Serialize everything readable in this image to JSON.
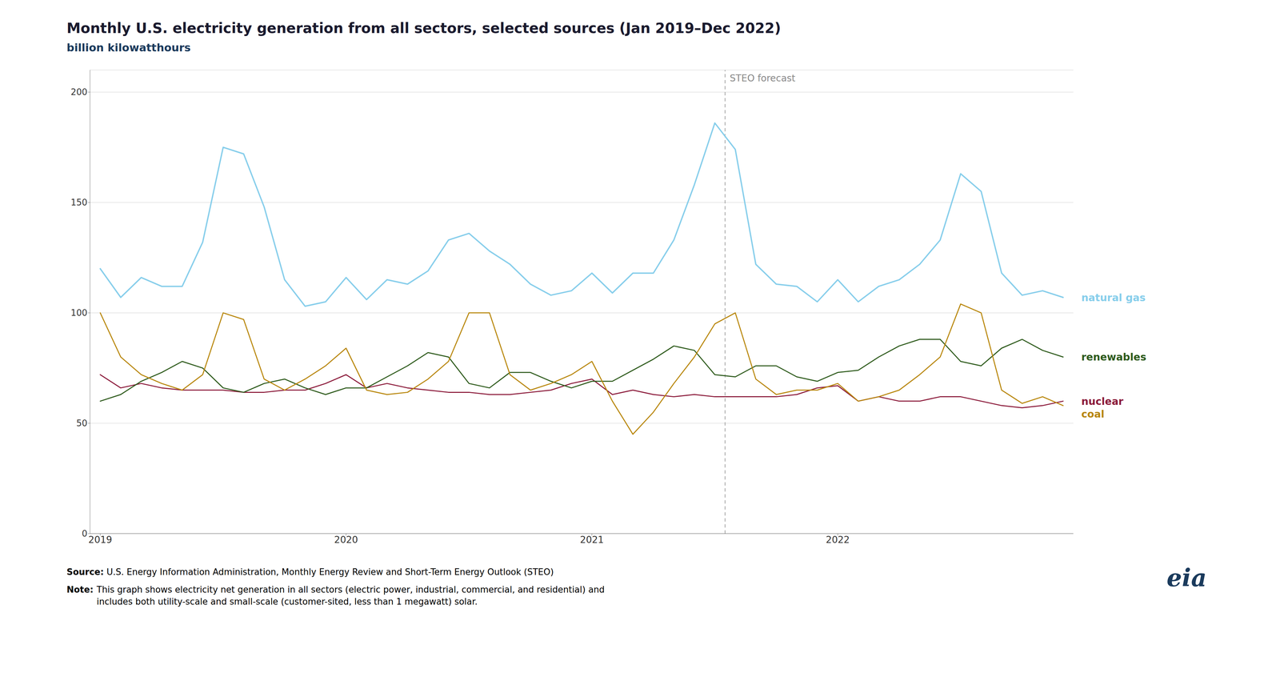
{
  "chart_data": {
    "type": "line",
    "title": "Monthly U.S. electricity generation from all sectors, selected sources (Jan 2019–Dec 2022)",
    "subtitle": "billion kilowatthours",
    "categories": [
      "2019",
      null,
      null,
      null,
      null,
      null,
      null,
      null,
      null,
      null,
      null,
      null,
      "2020",
      null,
      null,
      null,
      null,
      null,
      null,
      null,
      null,
      null,
      null,
      null,
      "2021",
      null,
      null,
      null,
      null,
      null,
      null,
      null,
      null,
      null,
      null,
      null,
      "2022",
      null,
      null,
      null,
      null,
      null,
      null,
      null,
      null,
      null,
      null,
      null
    ],
    "series": [
      {
        "name": "nuclear",
        "color": "#8b1a3a",
        "values": [
          72,
          66,
          68,
          66,
          65,
          65,
          65,
          64,
          64,
          65,
          65,
          68,
          72,
          66,
          68,
          66,
          65,
          64,
          64,
          63,
          63,
          64,
          65,
          68,
          70,
          63,
          65,
          63,
          62,
          63,
          62,
          62,
          62,
          62,
          63,
          66,
          67,
          60,
          62,
          60,
          60,
          62,
          62,
          60,
          58,
          57,
          58,
          60
        ]
      },
      {
        "name": "renewables",
        "color": "#2d5a1b",
        "values": [
          60,
          63,
          69,
          73,
          78,
          75,
          66,
          64,
          68,
          70,
          66,
          63,
          66,
          66,
          71,
          76,
          82,
          80,
          68,
          66,
          73,
          73,
          69,
          66,
          69,
          69,
          74,
          79,
          85,
          83,
          72,
          71,
          76,
          76,
          71,
          69,
          73,
          74,
          80,
          85,
          88,
          88,
          78,
          76,
          84,
          88,
          83,
          80
        ]
      },
      {
        "name": "coal",
        "color": "#b8860b",
        "values": [
          100,
          80,
          72,
          68,
          65,
          72,
          100,
          97,
          70,
          65,
          70,
          76,
          84,
          65,
          63,
          64,
          70,
          78,
          100,
          100,
          72,
          65,
          68,
          72,
          78,
          60,
          45,
          55,
          68,
          80,
          95,
          100,
          70,
          63,
          65,
          65,
          68,
          60,
          62,
          65,
          72,
          80,
          104,
          100,
          65,
          59,
          62,
          58
        ]
      },
      {
        "name": "natural gas",
        "color": "#87ceeb",
        "values": [
          120,
          107,
          116,
          112,
          112,
          132,
          175,
          172,
          148,
          115,
          103,
          105,
          116,
          106,
          115,
          113,
          119,
          133,
          136,
          128,
          122,
          113,
          108,
          110,
          118,
          109,
          118,
          118,
          133,
          158,
          186,
          174,
          122,
          113,
          112,
          105,
          115,
          105,
          112,
          115,
          122,
          133,
          163,
          155,
          118,
          108,
          110,
          107
        ]
      }
    ],
    "ylim": [
      0,
      210
    ],
    "yticks": [
      0,
      50,
      100,
      150,
      200
    ],
    "grid": true,
    "annotations": [
      {
        "text": "STEO forecast",
        "x": 30.5,
        "line_style": "dashed"
      }
    ],
    "source_label": "Source:",
    "source": "U.S. Energy Information Administration, Monthly Energy Review and Short-Term Energy Outlook (STEO)",
    "note_label": "Note:",
    "note": "This graph shows electricity net generation in all sectors (electric power, industrial, commercial, and residential) and\nincludes both utility-scale and small-scale (customer-sited, less than 1 megawatt) solar.",
    "logo": "eia"
  }
}
